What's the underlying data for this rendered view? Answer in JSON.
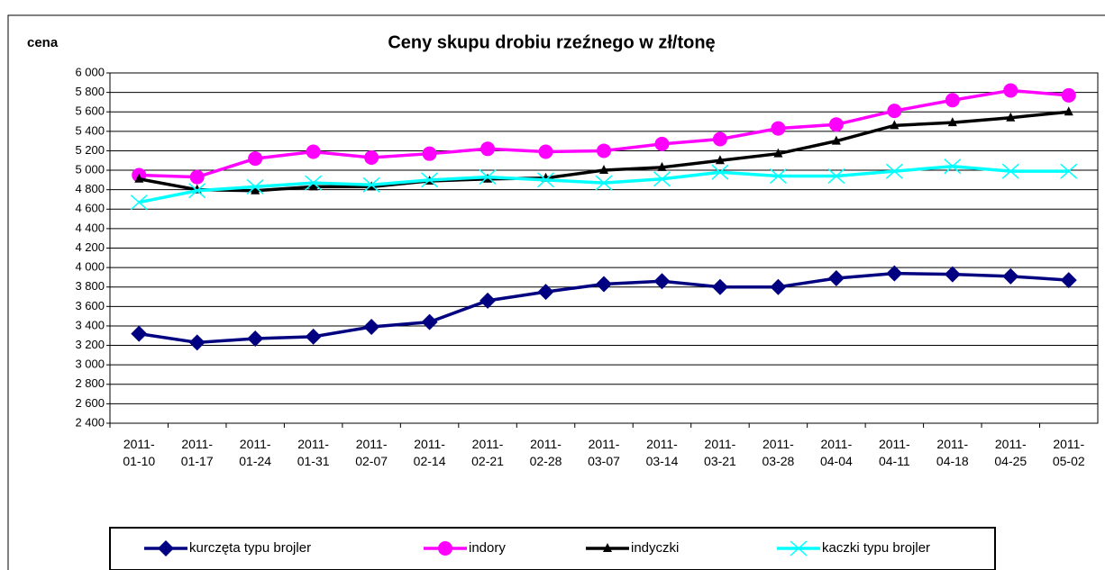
{
  "chart_data": {
    "type": "line",
    "title": "Ceny skupu drobiu rzeźnego w zł/tonę",
    "y_label": "cena",
    "categories": [
      "2011-01-10",
      "2011-01-17",
      "2011-01-24",
      "2011-01-31",
      "2011-02-07",
      "2011-02-14",
      "2011-02-21",
      "2011-02-28",
      "2011-03-07",
      "2011-03-14",
      "2011-03-21",
      "2011-03-28",
      "2011-04-04",
      "2011-04-11",
      "2011-04-18",
      "2011-04-25",
      "2011-05-02"
    ],
    "series": [
      {
        "name": "kurczęta typu brojler",
        "color": "#000080",
        "marker": "diamond",
        "values": [
          3320,
          3230,
          3270,
          3290,
          3390,
          3440,
          3660,
          3750,
          3830,
          3860,
          3800,
          3800,
          3890,
          3940,
          3930,
          3910,
          3870
        ]
      },
      {
        "name": "indory",
        "color": "#ff00ff",
        "marker": "circle",
        "values": [
          4950,
          4930,
          5120,
          5190,
          5130,
          5170,
          5220,
          5190,
          5200,
          5270,
          5320,
          5430,
          5470,
          5610,
          5720,
          5820,
          5770
        ]
      },
      {
        "name": "indyczki",
        "color": "#000000",
        "marker": "triangle",
        "values": [
          4910,
          4800,
          4790,
          4830,
          4830,
          4890,
          4910,
          4920,
          5000,
          5030,
          5100,
          5170,
          5300,
          5460,
          5490,
          5540,
          5600
        ]
      },
      {
        "name": "kaczki typu brojler",
        "color": "#00ffff",
        "marker": "x",
        "values": [
          4670,
          4790,
          4830,
          4870,
          4850,
          4900,
          4930,
          4900,
          4870,
          4910,
          4980,
          4940,
          4940,
          4990,
          5040,
          4990,
          4990
        ]
      }
    ],
    "ylim": [
      2400,
      6000
    ],
    "yticks": [
      {
        "value": 2400,
        "label": "2 400"
      },
      {
        "value": 2600,
        "label": "2 600"
      },
      {
        "value": 2800,
        "label": "2 800"
      },
      {
        "value": 3000,
        "label": "3 000"
      },
      {
        "value": 3200,
        "label": "3 200"
      },
      {
        "value": 3400,
        "label": "3 400"
      },
      {
        "value": 3600,
        "label": "3 600"
      },
      {
        "value": 3800,
        "label": "3 800"
      },
      {
        "value": 4000,
        "label": "4 000"
      },
      {
        "value": 4200,
        "label": "4 200"
      },
      {
        "value": 4400,
        "label": "4 400"
      },
      {
        "value": 4600,
        "label": "4 600"
      },
      {
        "value": 4800,
        "label": "4 800"
      },
      {
        "value": 5000,
        "label": "5 000"
      },
      {
        "value": 5200,
        "label": "5 200"
      },
      {
        "value": 5400,
        "label": "5 400"
      },
      {
        "value": 5600,
        "label": "5 600"
      },
      {
        "value": 5800,
        "label": "5 800"
      },
      {
        "value": 6000,
        "label": "6 000"
      }
    ],
    "grid": true
  }
}
